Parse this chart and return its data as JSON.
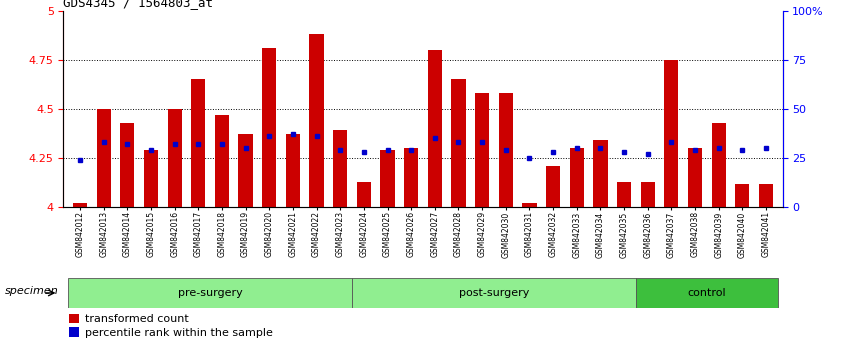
{
  "title": "GDS4345 / 1564803_at",
  "samples": [
    "GSM842012",
    "GSM842013",
    "GSM842014",
    "GSM842015",
    "GSM842016",
    "GSM842017",
    "GSM842018",
    "GSM842019",
    "GSM842020",
    "GSM842021",
    "GSM842022",
    "GSM842023",
    "GSM842024",
    "GSM842025",
    "GSM842026",
    "GSM842027",
    "GSM842028",
    "GSM842029",
    "GSM842030",
    "GSM842031",
    "GSM842032",
    "GSM842033",
    "GSM842034",
    "GSM842035",
    "GSM842036",
    "GSM842037",
    "GSM842038",
    "GSM842039",
    "GSM842040",
    "GSM842041"
  ],
  "red_values": [
    4.02,
    4.5,
    4.43,
    4.29,
    4.5,
    4.65,
    4.47,
    4.37,
    4.81,
    4.37,
    4.88,
    4.39,
    4.13,
    4.29,
    4.3,
    4.8,
    4.65,
    4.58,
    4.58,
    4.02,
    4.21,
    4.3,
    4.34,
    4.13,
    4.13,
    4.75,
    4.3,
    4.43,
    4.12,
    4.12
  ],
  "blue_values": [
    4.24,
    4.33,
    4.32,
    4.29,
    4.32,
    4.32,
    4.32,
    4.3,
    4.36,
    4.37,
    4.36,
    4.29,
    4.28,
    4.29,
    4.29,
    4.35,
    4.33,
    4.33,
    4.29,
    4.25,
    4.28,
    4.3,
    4.3,
    4.28,
    4.27,
    4.33,
    4.29,
    4.3,
    4.29,
    4.3
  ],
  "groups": [
    {
      "name": "pre-surgery",
      "start": 0,
      "end": 11,
      "light": true
    },
    {
      "name": "post-surgery",
      "start": 12,
      "end": 23,
      "light": true
    },
    {
      "name": "control",
      "start": 24,
      "end": 29,
      "light": false
    }
  ],
  "ylim": [
    4.0,
    5.0
  ],
  "y2lim": [
    0,
    100
  ],
  "yticks": [
    4.0,
    4.25,
    4.5,
    4.75,
    5.0
  ],
  "ytick_labels": [
    "4",
    "4.25",
    "4.5",
    "4.75",
    "5"
  ],
  "y2ticks": [
    0,
    25,
    50,
    75,
    100
  ],
  "y2tick_labels": [
    "0",
    "25",
    "50",
    "75",
    "100%"
  ],
  "gridlines": [
    4.25,
    4.5,
    4.75
  ],
  "bar_color": "#CC0000",
  "dot_color": "#0000CC",
  "bar_width": 0.6,
  "light_group_color": "#90EE90",
  "dark_group_color": "#3DBF3D",
  "group_border_color": "#555555",
  "specimen_label": "specimen",
  "legend_items": [
    "transformed count",
    "percentile rank within the sample"
  ],
  "legend_colors": [
    "#CC0000",
    "#0000CC"
  ],
  "bg_color": "#E8E8E8",
  "plot_bg": "#FFFFFF"
}
